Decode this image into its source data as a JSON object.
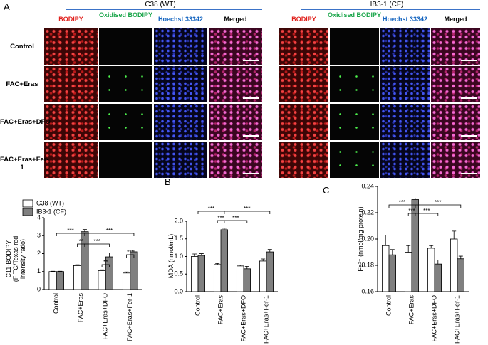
{
  "panel_labels": [
    "A",
    "B",
    "C"
  ],
  "microscopy": {
    "groups": [
      {
        "title": "C38 (WT)",
        "channels": [
          "BODIPY",
          "Oxidised BODIPY",
          "Hoechst 33342",
          "Merged"
        ]
      },
      {
        "title": "IB3-1 (CF)",
        "channels": [
          "BODIPY",
          "Oxidised BODIPY",
          "Hoechst 33342",
          "Merged"
        ]
      }
    ],
    "rows": [
      "Control",
      "FAC+Eras",
      "FAC+Eras+DFO",
      "FAC+Eras+Fer-1"
    ]
  },
  "chart_data": [
    {
      "type": "bar",
      "ylabel": "C11-BODIPY (FITC/Texas red intensity ratio)",
      "categories": [
        "Control",
        "FAC+Eras",
        "FAC+Eras+DFO",
        "FAC+Eras+Fer-1"
      ],
      "series": [
        {
          "name": "C38 (WT)",
          "color": "#ffffff",
          "values": [
            1.0,
            1.33,
            1.05,
            0.92
          ],
          "errors": [
            0.02,
            0.05,
            0.05,
            0.06
          ]
        },
        {
          "name": "IB3-1 (CF)",
          "color": "#808080",
          "values": [
            1.0,
            3.22,
            1.82,
            2.1
          ],
          "errors": [
            0.02,
            0.12,
            0.22,
            0.1
          ]
        }
      ],
      "ylim": [
        0,
        4
      ],
      "yticks": [
        0,
        1,
        2,
        3,
        4
      ],
      "legend": "top-left",
      "annotations": [
        "***",
        "***",
        "**",
        "***",
        "**",
        "***"
      ]
    },
    {
      "type": "bar",
      "ylabel": "MDA (nmol/mL)",
      "categories": [
        "Control",
        "FAC+Eras",
        "FAC+Eras+DFO",
        "FAC+Eras+Fer-1"
      ],
      "series": [
        {
          "name": "C38 (WT)",
          "color": "#ffffff",
          "values": [
            1.0,
            0.77,
            0.73,
            0.87
          ],
          "errors": [
            0.07,
            0.03,
            0.03,
            0.06
          ]
        },
        {
          "name": "IB3-1 (CF)",
          "color": "#808080",
          "values": [
            1.03,
            1.76,
            0.65,
            1.13
          ],
          "errors": [
            0.05,
            0.04,
            0.07,
            0.07
          ]
        }
      ],
      "ylim": [
        0,
        2
      ],
      "yticks": [
        {
          "value": 0,
          "label": "0.0"
        },
        {
          "value": 0.5,
          "label": "0.5"
        },
        {
          "value": 1,
          "label": "1.0"
        },
        {
          "value": 1.5,
          "label": "1.5"
        },
        {
          "value": 2,
          "label": "2.0"
        }
      ],
      "annotations": [
        "***",
        "***",
        "***",
        "***"
      ]
    },
    {
      "type": "bar",
      "ylabel": "Fe²⁺ (nmol/mg protein)",
      "categories": [
        "Control",
        "FAC+Eras",
        "FAC+Eras+DFO",
        "FAC+Eras+Fer-1"
      ],
      "series": [
        {
          "name": "C38 (WT)",
          "color": "#ffffff",
          "values": [
            0.195,
            0.19,
            0.193,
            0.2
          ],
          "errors": [
            0.008,
            0.005,
            0.002,
            0.006
          ]
        },
        {
          "name": "IB3-1 (CF)",
          "color": "#808080",
          "values": [
            0.188,
            0.23,
            0.181,
            0.185
          ],
          "errors": [
            0.004,
            0.001,
            0.003,
            0.002
          ]
        }
      ],
      "ylim": [
        0.16,
        0.24
      ],
      "yticks": [
        0.16,
        0.18,
        {
          "value": 0.2,
          "label": "0.20"
        },
        0.22,
        0.24
      ],
      "annotations": [
        "***",
        "***",
        "***",
        "***"
      ]
    }
  ]
}
